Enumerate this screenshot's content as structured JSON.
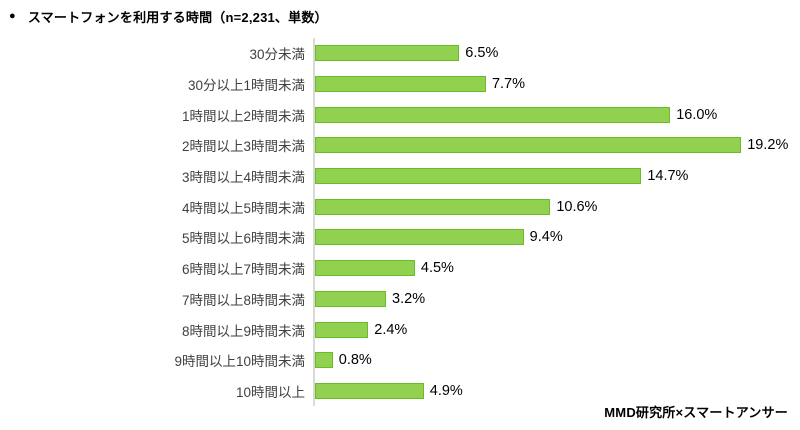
{
  "title": {
    "bullet": "●",
    "text": "スマートフォンを利用する時間（n=2,231、単数）"
  },
  "source": "MMD研究所×スマートアンサー",
  "chart_data": {
    "type": "bar",
    "orientation": "horizontal",
    "title": "スマートフォンを利用する時間（n=2,231、単数）",
    "xlabel": "",
    "ylabel": "",
    "xlim": [
      0,
      20
    ],
    "grid": false,
    "legend": "none",
    "bar_fill": "#92D050",
    "bar_border": "#69BE28",
    "axis_line_color": "#D9D9D9",
    "categories": [
      "30分未満",
      "30分以上1時間未満",
      "1時間以上2時間未満",
      "2時間以上3時間未満",
      "3時間以上4時間未満",
      "4時間以上5時間未満",
      "5時間以上6時間未満",
      "6時間以上7時間未満",
      "7時間以上8時間未満",
      "8時間以上9時間未満",
      "9時間以上10時間未満",
      "10時間以上"
    ],
    "values": [
      6.5,
      7.7,
      16.0,
      19.2,
      14.7,
      10.6,
      9.4,
      4.5,
      3.2,
      2.4,
      0.8,
      4.9
    ],
    "value_labels": [
      "6.5%",
      "7.7%",
      "16.0%",
      "19.2%",
      "14.7%",
      "10.6%",
      "9.4%",
      "4.5%",
      "3.2%",
      "2.4%",
      "0.8%",
      "4.9%"
    ]
  }
}
